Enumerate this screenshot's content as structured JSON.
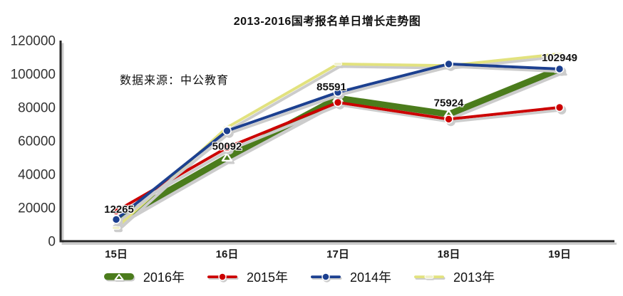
{
  "page": {
    "background": "#ffffff"
  },
  "chart_data": {
    "type": "line",
    "title": "2013-2016国考报名单日增长走势图",
    "source_note": "数据来源：中公教育",
    "xlabel": "",
    "ylabel": "",
    "categories": [
      "15日",
      "16日",
      "17日",
      "18日",
      "19日"
    ],
    "ylim": [
      0,
      120000
    ],
    "y_ticks": [
      "0",
      "20000",
      "40000",
      "60000",
      "80000",
      "100000",
      "120000"
    ],
    "grid": false,
    "legend_position": "bottom",
    "labeled_series": "2016年",
    "shadow_color": "#cccccc",
    "axis_color": "#262626",
    "series": [
      {
        "name": "2016年",
        "color": "#4b7b1c",
        "marker": "triangle",
        "line_width": 9,
        "values": [
          12265,
          50092,
          85591,
          75924,
          102949
        ],
        "data_labels": [
          "12265",
          "50092",
          "85591",
          "75924",
          "102949"
        ]
      },
      {
        "name": "2015年",
        "color": "#cc0000",
        "marker": "circle",
        "line_width": 4,
        "values": [
          18000,
          56000,
          83000,
          73000,
          80000
        ]
      },
      {
        "name": "2014年",
        "color": "#1e4090",
        "marker": "circle",
        "line_width": 4,
        "values": [
          13000,
          66000,
          89000,
          106000,
          103000
        ]
      },
      {
        "name": "2013年",
        "color": "#e2e27e",
        "marker": "dash",
        "marker_color": "#f0f0c6",
        "line_width": 4,
        "values": [
          8000,
          68000,
          106000,
          105000,
          112000
        ]
      }
    ]
  }
}
